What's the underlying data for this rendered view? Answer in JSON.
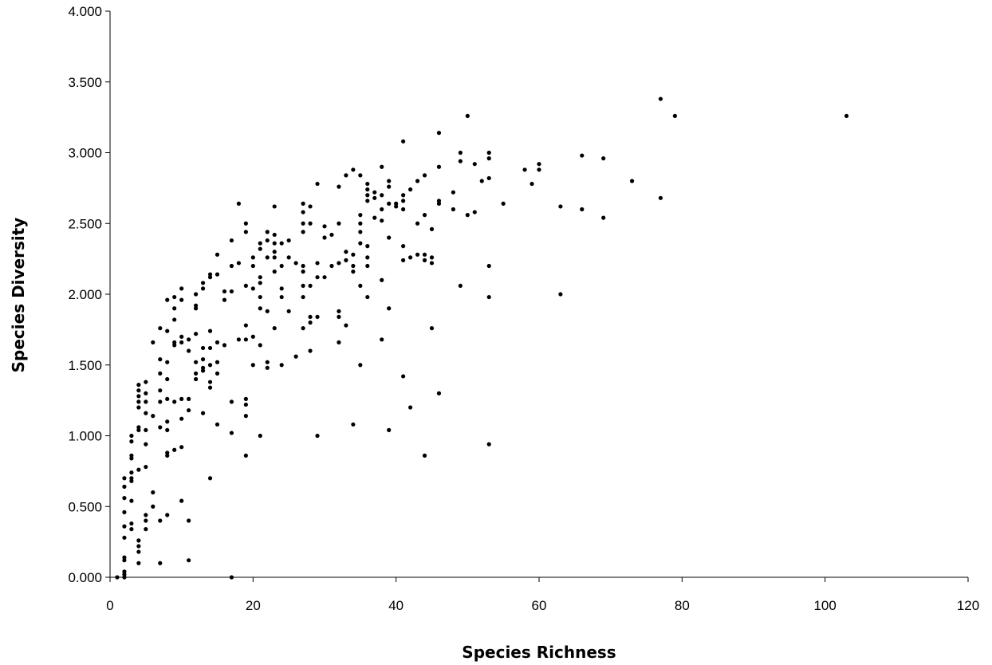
{
  "chart_data": {
    "type": "scatter",
    "title": "",
    "xlabel": "Species Richness",
    "ylabel": "Species Diversity",
    "xlim": [
      0,
      120
    ],
    "ylim": [
      0,
      4
    ],
    "x_ticks": [
      "0",
      "20",
      "40",
      "60",
      "80",
      "100",
      "120"
    ],
    "y_ticks": [
      "0.000",
      "0.500",
      "1.000",
      "1.500",
      "2.000",
      "2.500",
      "3.000",
      "3.500",
      "4.000"
    ],
    "grid": false,
    "legend": "none",
    "marker_color": "#000000",
    "series": [
      {
        "points": [
          [
            1,
            0.0
          ],
          [
            2,
            0.0
          ],
          [
            2,
            0.02
          ],
          [
            2,
            0.04
          ],
          [
            2,
            0.12
          ],
          [
            2,
            0.14
          ],
          [
            2,
            0.28
          ],
          [
            2,
            0.36
          ],
          [
            2,
            0.46
          ],
          [
            2,
            0.56
          ],
          [
            2,
            0.64
          ],
          [
            2,
            0.7
          ],
          [
            3,
            0.34
          ],
          [
            3,
            0.38
          ],
          [
            3,
            0.54
          ],
          [
            3,
            0.68
          ],
          [
            3,
            0.7
          ],
          [
            3,
            0.74
          ],
          [
            3,
            0.84
          ],
          [
            3,
            0.86
          ],
          [
            3,
            0.96
          ],
          [
            3,
            1.0
          ],
          [
            4,
            0.1
          ],
          [
            4,
            0.18
          ],
          [
            4,
            0.22
          ],
          [
            4,
            0.26
          ],
          [
            4,
            0.76
          ],
          [
            4,
            1.04
          ],
          [
            4,
            1.06
          ],
          [
            4,
            1.2
          ],
          [
            4,
            1.24
          ],
          [
            4,
            1.28
          ],
          [
            4,
            1.32
          ],
          [
            4,
            1.36
          ],
          [
            5,
            0.34
          ],
          [
            5,
            0.4
          ],
          [
            5,
            0.44
          ],
          [
            5,
            0.78
          ],
          [
            5,
            0.94
          ],
          [
            5,
            1.04
          ],
          [
            5,
            1.16
          ],
          [
            5,
            1.24
          ],
          [
            5,
            1.3
          ],
          [
            5,
            1.38
          ],
          [
            6,
            0.5
          ],
          [
            6,
            0.6
          ],
          [
            6,
            1.14
          ],
          [
            6,
            1.66
          ],
          [
            7,
            0.1
          ],
          [
            7,
            0.4
          ],
          [
            7,
            1.06
          ],
          [
            7,
            1.24
          ],
          [
            7,
            1.32
          ],
          [
            7,
            1.44
          ],
          [
            7,
            1.54
          ],
          [
            7,
            1.76
          ],
          [
            8,
            0.44
          ],
          [
            8,
            0.86
          ],
          [
            8,
            0.88
          ],
          [
            8,
            1.04
          ],
          [
            8,
            1.1
          ],
          [
            8,
            1.26
          ],
          [
            8,
            1.4
          ],
          [
            8,
            1.52
          ],
          [
            8,
            1.74
          ],
          [
            8,
            1.96
          ],
          [
            9,
            0.9
          ],
          [
            9,
            1.24
          ],
          [
            9,
            1.64
          ],
          [
            9,
            1.66
          ],
          [
            9,
            1.82
          ],
          [
            9,
            1.9
          ],
          [
            9,
            1.98
          ],
          [
            10,
            0.54
          ],
          [
            10,
            0.92
          ],
          [
            10,
            1.12
          ],
          [
            10,
            1.26
          ],
          [
            10,
            1.66
          ],
          [
            10,
            1.7
          ],
          [
            10,
            1.96
          ],
          [
            10,
            2.04
          ],
          [
            11,
            0.12
          ],
          [
            11,
            0.4
          ],
          [
            11,
            1.18
          ],
          [
            11,
            1.26
          ],
          [
            11,
            1.6
          ],
          [
            11,
            1.68
          ],
          [
            12,
            1.4
          ],
          [
            12,
            1.44
          ],
          [
            12,
            1.52
          ],
          [
            12,
            1.72
          ],
          [
            12,
            1.9
          ],
          [
            12,
            1.92
          ],
          [
            12,
            2.0
          ],
          [
            13,
            1.16
          ],
          [
            13,
            1.46
          ],
          [
            13,
            1.48
          ],
          [
            13,
            1.54
          ],
          [
            13,
            1.62
          ],
          [
            13,
            2.04
          ],
          [
            13,
            2.08
          ],
          [
            14,
            0.7
          ],
          [
            14,
            1.34
          ],
          [
            14,
            1.38
          ],
          [
            14,
            1.5
          ],
          [
            14,
            1.62
          ],
          [
            14,
            1.74
          ],
          [
            14,
            2.12
          ],
          [
            14,
            2.14
          ],
          [
            15,
            1.08
          ],
          [
            15,
            1.44
          ],
          [
            15,
            1.52
          ],
          [
            15,
            1.66
          ],
          [
            15,
            2.14
          ],
          [
            15,
            2.28
          ],
          [
            16,
            1.64
          ],
          [
            16,
            1.96
          ],
          [
            16,
            2.02
          ],
          [
            17,
            0.0
          ],
          [
            17,
            1.02
          ],
          [
            17,
            1.24
          ],
          [
            17,
            2.02
          ],
          [
            17,
            2.2
          ],
          [
            17,
            2.38
          ],
          [
            18,
            1.68
          ],
          [
            18,
            2.22
          ],
          [
            18,
            2.64
          ],
          [
            19,
            0.86
          ],
          [
            19,
            1.14
          ],
          [
            19,
            1.22
          ],
          [
            19,
            1.26
          ],
          [
            19,
            1.68
          ],
          [
            19,
            1.78
          ],
          [
            19,
            2.06
          ],
          [
            19,
            2.44
          ],
          [
            19,
            2.5
          ],
          [
            20,
            1.5
          ],
          [
            20,
            1.7
          ],
          [
            20,
            2.04
          ],
          [
            20,
            2.2
          ],
          [
            20,
            2.26
          ],
          [
            21,
            1.0
          ],
          [
            21,
            1.64
          ],
          [
            21,
            1.9
          ],
          [
            21,
            1.98
          ],
          [
            21,
            2.08
          ],
          [
            21,
            2.12
          ],
          [
            21,
            2.32
          ],
          [
            21,
            2.36
          ],
          [
            22,
            1.48
          ],
          [
            22,
            1.52
          ],
          [
            22,
            1.88
          ],
          [
            22,
            2.26
          ],
          [
            22,
            2.38
          ],
          [
            22,
            2.44
          ],
          [
            23,
            1.76
          ],
          [
            23,
            2.16
          ],
          [
            23,
            2.26
          ],
          [
            23,
            2.3
          ],
          [
            23,
            2.36
          ],
          [
            23,
            2.42
          ],
          [
            23,
            2.62
          ],
          [
            24,
            1.5
          ],
          [
            24,
            1.98
          ],
          [
            24,
            2.04
          ],
          [
            24,
            2.2
          ],
          [
            24,
            2.36
          ],
          [
            25,
            1.88
          ],
          [
            25,
            2.26
          ],
          [
            25,
            2.38
          ],
          [
            26,
            1.56
          ],
          [
            26,
            2.22
          ],
          [
            27,
            1.76
          ],
          [
            27,
            1.98
          ],
          [
            27,
            2.06
          ],
          [
            27,
            2.16
          ],
          [
            27,
            2.2
          ],
          [
            27,
            2.44
          ],
          [
            27,
            2.5
          ],
          [
            27,
            2.58
          ],
          [
            27,
            2.64
          ],
          [
            28,
            1.6
          ],
          [
            28,
            1.8
          ],
          [
            28,
            1.84
          ],
          [
            28,
            2.06
          ],
          [
            28,
            2.5
          ],
          [
            28,
            2.62
          ],
          [
            29,
            1.0
          ],
          [
            29,
            1.84
          ],
          [
            29,
            2.12
          ],
          [
            29,
            2.22
          ],
          [
            29,
            2.78
          ],
          [
            30,
            2.12
          ],
          [
            30,
            2.4
          ],
          [
            30,
            2.48
          ],
          [
            31,
            2.2
          ],
          [
            31,
            2.42
          ],
          [
            32,
            1.66
          ],
          [
            32,
            1.84
          ],
          [
            32,
            1.88
          ],
          [
            32,
            2.22
          ],
          [
            32,
            2.5
          ],
          [
            32,
            2.76
          ],
          [
            33,
            1.78
          ],
          [
            33,
            2.24
          ],
          [
            33,
            2.3
          ],
          [
            33,
            2.84
          ],
          [
            34,
            1.08
          ],
          [
            34,
            2.16
          ],
          [
            34,
            2.2
          ],
          [
            34,
            2.28
          ],
          [
            34,
            2.88
          ],
          [
            35,
            1.5
          ],
          [
            35,
            2.06
          ],
          [
            35,
            2.36
          ],
          [
            35,
            2.44
          ],
          [
            35,
            2.5
          ],
          [
            35,
            2.56
          ],
          [
            35,
            2.84
          ],
          [
            36,
            1.98
          ],
          [
            36,
            2.2
          ],
          [
            36,
            2.26
          ],
          [
            36,
            2.34
          ],
          [
            36,
            2.66
          ],
          [
            36,
            2.7
          ],
          [
            36,
            2.74
          ],
          [
            36,
            2.78
          ],
          [
            37,
            2.54
          ],
          [
            37,
            2.68
          ],
          [
            37,
            2.72
          ],
          [
            38,
            1.68
          ],
          [
            38,
            2.1
          ],
          [
            38,
            2.52
          ],
          [
            38,
            2.6
          ],
          [
            38,
            2.7
          ],
          [
            38,
            2.9
          ],
          [
            39,
            1.04
          ],
          [
            39,
            1.9
          ],
          [
            39,
            2.4
          ],
          [
            39,
            2.64
          ],
          [
            39,
            2.76
          ],
          [
            39,
            2.8
          ],
          [
            40,
            2.62
          ],
          [
            40,
            2.64
          ],
          [
            41,
            1.42
          ],
          [
            41,
            2.24
          ],
          [
            41,
            2.34
          ],
          [
            41,
            2.6
          ],
          [
            41,
            2.66
          ],
          [
            41,
            2.7
          ],
          [
            41,
            3.08
          ],
          [
            42,
            1.2
          ],
          [
            42,
            2.26
          ],
          [
            42,
            2.74
          ],
          [
            43,
            2.28
          ],
          [
            43,
            2.5
          ],
          [
            43,
            2.8
          ],
          [
            44,
            0.86
          ],
          [
            44,
            2.24
          ],
          [
            44,
            2.28
          ],
          [
            44,
            2.56
          ],
          [
            44,
            2.84
          ],
          [
            45,
            1.76
          ],
          [
            45,
            2.22
          ],
          [
            45,
            2.26
          ],
          [
            45,
            2.46
          ],
          [
            46,
            1.3
          ],
          [
            46,
            2.64
          ],
          [
            46,
            2.66
          ],
          [
            46,
            2.9
          ],
          [
            46,
            3.14
          ],
          [
            48,
            2.6
          ],
          [
            48,
            2.72
          ],
          [
            49,
            2.06
          ],
          [
            49,
            2.94
          ],
          [
            49,
            3.0
          ],
          [
            50,
            2.56
          ],
          [
            50,
            3.26
          ],
          [
            51,
            2.58
          ],
          [
            51,
            2.92
          ],
          [
            52,
            2.8
          ],
          [
            53,
            0.94
          ],
          [
            53,
            1.98
          ],
          [
            53,
            2.2
          ],
          [
            53,
            2.82
          ],
          [
            53,
            2.96
          ],
          [
            53,
            3.0
          ],
          [
            55,
            2.64
          ],
          [
            58,
            2.88
          ],
          [
            59,
            2.78
          ],
          [
            60,
            2.88
          ],
          [
            60,
            2.92
          ],
          [
            63,
            2.0
          ],
          [
            63,
            2.62
          ],
          [
            66,
            2.6
          ],
          [
            66,
            2.98
          ],
          [
            69,
            2.54
          ],
          [
            69,
            2.96
          ],
          [
            73,
            2.8
          ],
          [
            77,
            2.68
          ],
          [
            77,
            3.38
          ],
          [
            79,
            3.26
          ],
          [
            103,
            3.26
          ]
        ]
      }
    ]
  }
}
